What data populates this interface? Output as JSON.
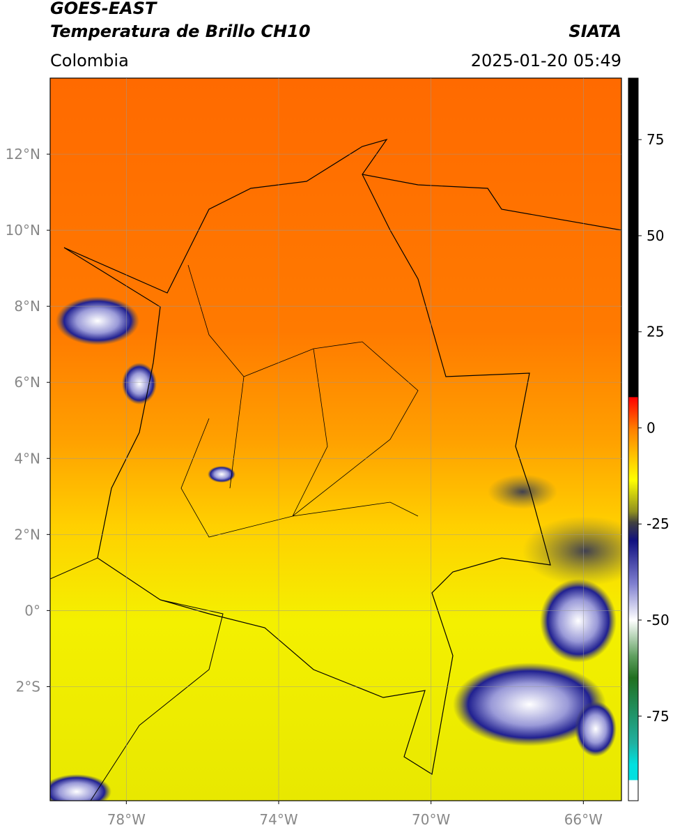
{
  "header": {
    "title": "GOES-EAST",
    "subtitle": "Temperatura de Brillo CH10",
    "source": "SIATA",
    "region": "Colombia",
    "datetime": "2025-01-20 05:49"
  },
  "map": {
    "xlim": [
      -80,
      -65
    ],
    "ylim": [
      -5,
      14
    ],
    "xticks": [
      {
        "value": -78,
        "label": "78°W"
      },
      {
        "value": -74,
        "label": "74°W"
      },
      {
        "value": -70,
        "label": "70°W"
      },
      {
        "value": -66,
        "label": "66°W"
      }
    ],
    "yticks": [
      {
        "value": 12,
        "label": "12°N"
      },
      {
        "value": 10,
        "label": "10°N"
      },
      {
        "value": 8,
        "label": "8°N"
      },
      {
        "value": 6,
        "label": "6°N"
      },
      {
        "value": 4,
        "label": "4°N"
      },
      {
        "value": 2,
        "label": "2°N"
      },
      {
        "value": 0,
        "label": "0°"
      },
      {
        "value": -2,
        "label": "2°S"
      }
    ],
    "grid": true
  },
  "colorbar": {
    "lim": [
      -97,
      91
    ],
    "ticks": [
      75,
      50,
      25,
      0,
      -25,
      -50,
      -75
    ]
  }
}
